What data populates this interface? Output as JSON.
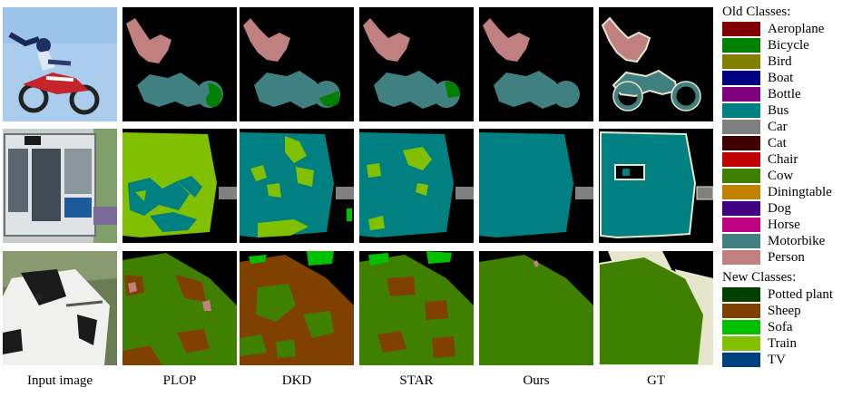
{
  "columns": [
    "Input image",
    "PLOP",
    "DKD",
    "STAR",
    "Ours",
    "GT"
  ],
  "legend": {
    "old_title": "Old Classes:",
    "old_classes": [
      {
        "name": "Aeroplane",
        "color": "#800000"
      },
      {
        "name": "Bicycle",
        "color": "#008000"
      },
      {
        "name": "Bird",
        "color": "#808000"
      },
      {
        "name": "Boat",
        "color": "#000080"
      },
      {
        "name": "Bottle",
        "color": "#800080"
      },
      {
        "name": "Bus",
        "color": "#008080"
      },
      {
        "name": "Car",
        "color": "#808080"
      },
      {
        "name": "Cat",
        "color": "#400000"
      },
      {
        "name": "Chair",
        "color": "#c00000"
      },
      {
        "name": "Cow",
        "color": "#408000"
      },
      {
        "name": "Diningtable",
        "color": "#c08000"
      },
      {
        "name": "Dog",
        "color": "#400080"
      },
      {
        "name": "Horse",
        "color": "#c00080"
      },
      {
        "name": "Motorbike",
        "color": "#408080"
      },
      {
        "name": "Person",
        "color": "#c08080"
      }
    ],
    "new_title": "New Classes:",
    "new_classes": [
      {
        "name": "Potted plant",
        "color": "#004000"
      },
      {
        "name": "Sheep",
        "color": "#804000"
      },
      {
        "name": "Sofa",
        "color": "#00c000"
      },
      {
        "name": "Train",
        "color": "#80c000"
      },
      {
        "name": "TV",
        "color": "#004080"
      }
    ]
  }
}
